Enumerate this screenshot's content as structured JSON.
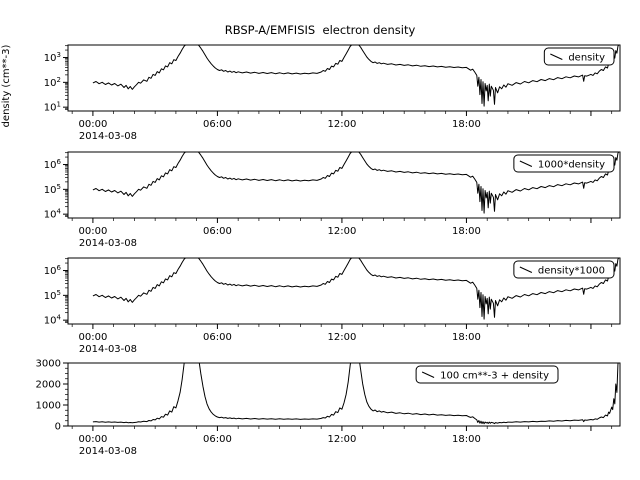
{
  "title": "RBSP-A/EMFISIS  electron density",
  "chart_data": {
    "type": "line",
    "title": "RBSP-A/EMFISIS  electron density",
    "x_date_label": "2014-03-08",
    "xticks_hours": [
      0,
      6,
      12,
      18
    ],
    "xtick_labels": [
      "00:00",
      "06:00",
      "12:00",
      "18:00"
    ],
    "x_range_hours": [
      -1.2,
      25.4
    ],
    "grid": false,
    "legend_position": "top-right",
    "line_color": "#000000",
    "series_name": "density",
    "series_units": "cm**-3",
    "panels": [
      {
        "legend": "density",
        "scale": "log",
        "multiply": 1,
        "add": 0,
        "ylim": [
          7,
          3200
        ],
        "yticks": [
          10,
          100,
          1000
        ],
        "ytick_labels": [
          "10^1",
          "10^2",
          "10^3"
        ],
        "ylabel": "density (cm**-3)"
      },
      {
        "legend": "1000*density",
        "scale": "log",
        "multiply": 1000,
        "add": 0,
        "ylim": [
          7000,
          3200000
        ],
        "yticks": [
          10000,
          100000,
          1000000
        ],
        "ytick_labels": [
          "10^4",
          "10^5",
          "10^6"
        ],
        "ylabel": ""
      },
      {
        "legend": "density*1000",
        "scale": "log",
        "multiply": 1000,
        "add": 0,
        "ylim": [
          7000,
          3200000
        ],
        "yticks": [
          10000,
          100000,
          1000000
        ],
        "ytick_labels": [
          "10^4",
          "10^5",
          "10^6"
        ],
        "ylabel": ""
      },
      {
        "legend": "100 cm**-3 + density",
        "scale": "linear",
        "multiply": 1,
        "add": 100,
        "ylim": [
          0,
          3000
        ],
        "yticks": [
          0,
          1000,
          2000,
          3000
        ],
        "ytick_labels": [
          "0",
          "1000",
          "2000",
          "3000"
        ],
        "ylabel": ""
      }
    ],
    "points": [
      [
        0,
        95
      ],
      [
        0.15,
        108
      ],
      [
        0.3,
        88
      ],
      [
        0.45,
        100
      ],
      [
        0.6,
        82
      ],
      [
        0.75,
        95
      ],
      [
        0.9,
        78
      ],
      [
        1.05,
        90
      ],
      [
        1.2,
        72
      ],
      [
        1.35,
        84
      ],
      [
        1.5,
        62
      ],
      [
        1.6,
        75
      ],
      [
        1.7,
        55
      ],
      [
        1.8,
        68
      ],
      [
        1.9,
        52
      ],
      [
        2.0,
        66
      ],
      [
        2.1,
        80
      ],
      [
        2.2,
        100
      ],
      [
        2.3,
        92
      ],
      [
        2.45,
        125
      ],
      [
        2.6,
        110
      ],
      [
        2.7,
        160
      ],
      [
        2.8,
        145
      ],
      [
        2.9,
        210
      ],
      [
        3.0,
        190
      ],
      [
        3.1,
        270
      ],
      [
        3.2,
        240
      ],
      [
        3.3,
        350
      ],
      [
        3.4,
        320
      ],
      [
        3.5,
        460
      ],
      [
        3.6,
        420
      ],
      [
        3.7,
        620
      ],
      [
        3.8,
        560
      ],
      [
        3.9,
        820
      ],
      [
        4.0,
        760
      ],
      [
        4.1,
        1100
      ],
      [
        4.2,
        1500
      ],
      [
        4.3,
        2100
      ],
      [
        4.4,
        2900
      ],
      [
        4.5,
        3400
      ],
      [
        4.6,
        3200
      ],
      [
        4.7,
        3500
      ],
      [
        4.8,
        3300
      ],
      [
        4.9,
        3500
      ],
      [
        5.0,
        3400
      ],
      [
        5.1,
        3100
      ],
      [
        5.2,
        2400
      ],
      [
        5.3,
        1800
      ],
      [
        5.4,
        1300
      ],
      [
        5.5,
        950
      ],
      [
        5.6,
        720
      ],
      [
        5.7,
        560
      ],
      [
        5.8,
        450
      ],
      [
        5.9,
        380
      ],
      [
        6.0,
        330
      ],
      [
        6.1,
        300
      ],
      [
        6.2,
        320
      ],
      [
        6.3,
        280
      ],
      [
        6.4,
        300
      ],
      [
        6.5,
        260
      ],
      [
        6.6,
        285
      ],
      [
        6.7,
        255
      ],
      [
        6.8,
        275
      ],
      [
        6.9,
        245
      ],
      [
        7.0,
        265
      ],
      [
        7.2,
        240
      ],
      [
        7.4,
        260
      ],
      [
        7.6,
        235
      ],
      [
        7.8,
        255
      ],
      [
        8.0,
        230
      ],
      [
        8.2,
        250
      ],
      [
        8.4,
        228
      ],
      [
        8.6,
        246
      ],
      [
        8.8,
        224
      ],
      [
        9.0,
        242
      ],
      [
        9.2,
        220
      ],
      [
        9.4,
        240
      ],
      [
        9.6,
        218
      ],
      [
        9.8,
        236
      ],
      [
        10.0,
        216
      ],
      [
        10.2,
        234
      ],
      [
        10.4,
        220
      ],
      [
        10.6,
        240
      ],
      [
        10.8,
        230
      ],
      [
        11.0,
        260
      ],
      [
        11.1,
        300
      ],
      [
        11.2,
        280
      ],
      [
        11.3,
        360
      ],
      [
        11.4,
        330
      ],
      [
        11.5,
        450
      ],
      [
        11.6,
        420
      ],
      [
        11.7,
        580
      ],
      [
        11.8,
        540
      ],
      [
        11.9,
        760
      ],
      [
        12.0,
        700
      ],
      [
        12.1,
        1000
      ],
      [
        12.2,
        1400
      ],
      [
        12.3,
        2000
      ],
      [
        12.4,
        2800
      ],
      [
        12.5,
        3400
      ],
      [
        12.6,
        3200
      ],
      [
        12.7,
        3500
      ],
      [
        12.8,
        3300
      ],
      [
        12.9,
        2600
      ],
      [
        13.0,
        1900
      ],
      [
        13.1,
        1400
      ],
      [
        13.2,
        1050
      ],
      [
        13.3,
        840
      ],
      [
        13.4,
        700
      ],
      [
        13.5,
        620
      ],
      [
        13.6,
        660
      ],
      [
        13.7,
        580
      ],
      [
        13.8,
        620
      ],
      [
        13.9,
        560
      ],
      [
        14.0,
        590
      ],
      [
        14.2,
        530
      ],
      [
        14.4,
        560
      ],
      [
        14.6,
        500
      ],
      [
        14.8,
        530
      ],
      [
        15.0,
        480
      ],
      [
        15.2,
        510
      ],
      [
        15.4,
        460
      ],
      [
        15.6,
        490
      ],
      [
        15.8,
        445
      ],
      [
        16.0,
        470
      ],
      [
        16.2,
        430
      ],
      [
        16.4,
        455
      ],
      [
        16.6,
        420
      ],
      [
        16.8,
        440
      ],
      [
        17.0,
        405
      ],
      [
        17.2,
        425
      ],
      [
        17.4,
        395
      ],
      [
        17.6,
        415
      ],
      [
        17.8,
        385
      ],
      [
        18.0,
        400
      ],
      [
        18.1,
        350
      ],
      [
        18.2,
        310
      ],
      [
        18.3,
        340
      ],
      [
        18.4,
        260
      ],
      [
        18.5,
        190
      ],
      [
        18.55,
        70
      ],
      [
        18.6,
        160
      ],
      [
        18.65,
        32
      ],
      [
        18.7,
        130
      ],
      [
        18.75,
        14
      ],
      [
        18.8,
        105
      ],
      [
        18.85,
        11
      ],
      [
        18.9,
        90
      ],
      [
        18.95,
        45
      ],
      [
        19.0,
        75
      ],
      [
        19.05,
        18
      ],
      [
        19.1,
        85
      ],
      [
        19.15,
        28
      ],
      [
        19.2,
        70
      ],
      [
        19.3,
        48
      ],
      [
        19.35,
        13
      ],
      [
        19.4,
        62
      ],
      [
        19.5,
        38
      ],
      [
        19.6,
        66
      ],
      [
        19.7,
        55
      ],
      [
        19.8,
        78
      ],
      [
        19.9,
        64
      ],
      [
        20.0,
        88
      ],
      [
        20.2,
        76
      ],
      [
        20.4,
        98
      ],
      [
        20.6,
        86
      ],
      [
        20.8,
        108
      ],
      [
        21.0,
        96
      ],
      [
        21.2,
        118
      ],
      [
        21.4,
        106
      ],
      [
        21.6,
        130
      ],
      [
        21.8,
        118
      ],
      [
        22.0,
        142
      ],
      [
        22.2,
        128
      ],
      [
        22.4,
        155
      ],
      [
        22.6,
        140
      ],
      [
        22.8,
        168
      ],
      [
        23.0,
        152
      ],
      [
        23.2,
        180
      ],
      [
        23.4,
        165
      ],
      [
        23.6,
        195
      ],
      [
        23.65,
        110
      ],
      [
        23.7,
        185
      ],
      [
        23.8,
        178
      ],
      [
        24.0,
        210
      ],
      [
        24.1,
        190
      ],
      [
        24.2,
        240
      ],
      [
        24.3,
        220
      ],
      [
        24.4,
        280
      ],
      [
        24.5,
        330
      ],
      [
        24.6,
        300
      ],
      [
        24.7,
        420
      ],
      [
        24.8,
        380
      ],
      [
        24.85,
        560
      ],
      [
        24.9,
        500
      ],
      [
        25.0,
        800
      ],
      [
        25.05,
        680
      ],
      [
        25.1,
        1200
      ],
      [
        25.15,
        950
      ],
      [
        25.2,
        1900
      ],
      [
        25.25,
        1500
      ],
      [
        25.3,
        2800
      ],
      [
        25.35,
        3400
      ]
    ]
  }
}
